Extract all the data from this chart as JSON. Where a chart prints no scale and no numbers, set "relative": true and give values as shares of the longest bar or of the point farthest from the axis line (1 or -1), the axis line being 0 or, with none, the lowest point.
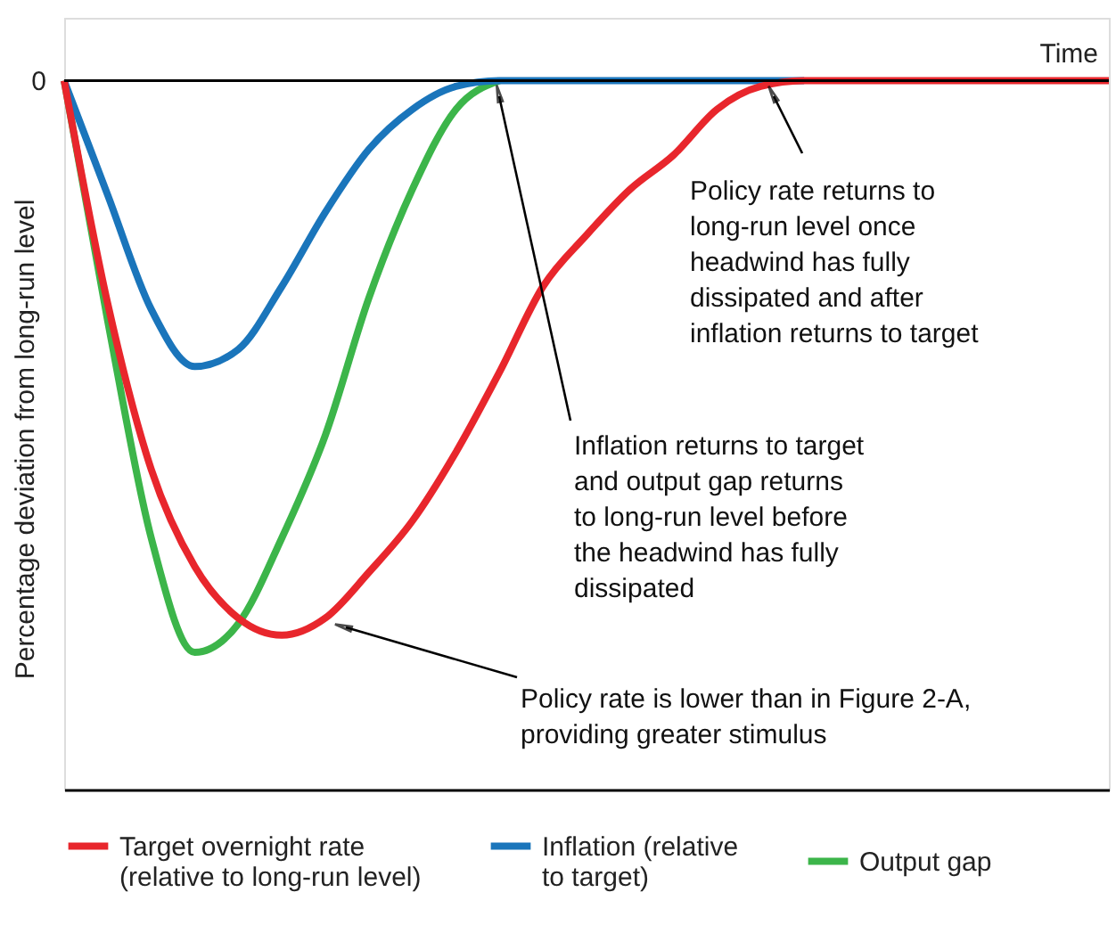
{
  "chart_data": {
    "type": "line",
    "relative": true,
    "xlabel": "Time",
    "ylabel": "Percentage deviation from long-run level",
    "categories": [
      null,
      null,
      null,
      null,
      null,
      null,
      null,
      null,
      null,
      null,
      null,
      null,
      null,
      null,
      null,
      null,
      null,
      null,
      null,
      null,
      null,
      null,
      null,
      null,
      null
    ],
    "series": [
      {
        "name": "Target overnight rate\n(relative to long-run level)",
        "color": "#e8262c",
        "values": [
          0,
          -0.39,
          -0.68,
          -0.85,
          -0.94,
          -0.97,
          -0.94,
          -0.86,
          -0.77,
          -0.65,
          -0.51,
          -0.36,
          -0.27,
          -0.19,
          -0.13,
          -0.05,
          -0.01,
          0,
          0,
          0,
          0,
          0,
          0,
          0,
          0
        ]
      },
      {
        "name": "Inflation (relative\nto target)",
        "color": "#1a75bb",
        "values": [
          0,
          -0.2,
          -0.4,
          -0.5,
          -0.47,
          -0.36,
          -0.23,
          -0.12,
          -0.05,
          -0.01,
          0,
          0,
          0,
          0,
          0,
          0,
          0,
          0,
          null,
          null,
          null,
          null,
          null,
          null,
          null
        ]
      },
      {
        "name": "Output gap",
        "color": "#3cb54a",
        "values": [
          0,
          -0.42,
          -0.8,
          -1,
          -0.95,
          -0.8,
          -0.62,
          -0.38,
          -0.19,
          -0.05,
          0,
          null,
          null,
          null,
          null,
          null,
          null,
          null,
          null,
          null,
          null,
          null,
          null,
          null,
          null
        ]
      }
    ],
    "ref_lines": [
      {
        "axis": "y",
        "value": 0,
        "label": "0",
        "color": "#000000"
      }
    ],
    "annotations": [
      "Policy rate is lower than in Figure 2-A,\nproviding greater stimulus",
      "Inflation returns to target\nand output gap returns\nto long-run level before\nthe headwind has fully\ndissipated",
      "Policy rate returns to\nlong-run level once\nheadwind has fully\ndissipated and after\ninflation returns to target"
    ],
    "legend": "bottom",
    "grid": false,
    "marker": "none",
    "line_style": "solid"
  }
}
